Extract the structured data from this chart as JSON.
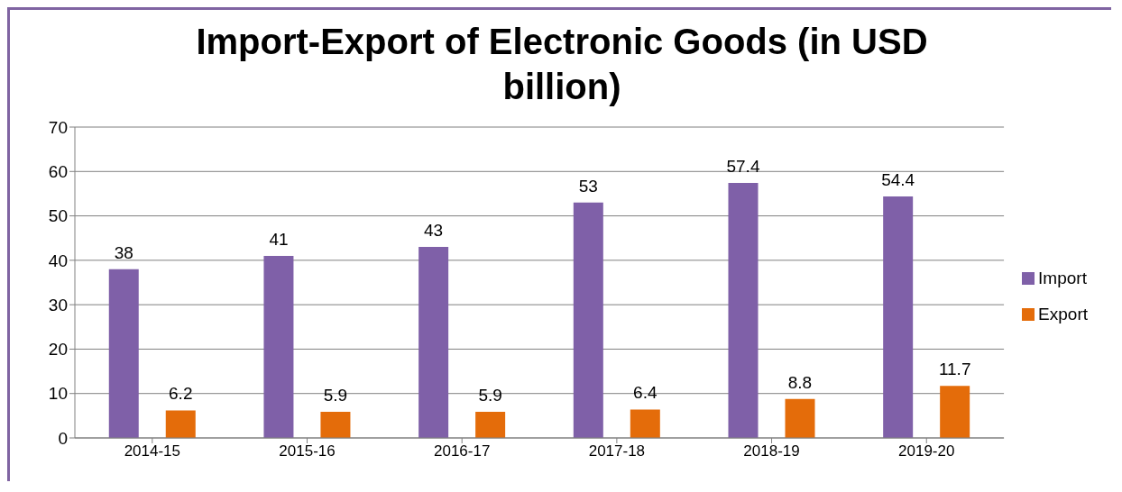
{
  "chart_data": {
    "type": "bar",
    "title": "Import-Export of Electronic Goods (in USD billion)",
    "categories": [
      "2014-15",
      "2015-16",
      "2016-17",
      "2017-18",
      "2018-19",
      "2019-20"
    ],
    "series": [
      {
        "name": "Import",
        "color": "#7f60a8",
        "values": [
          38,
          41,
          43,
          53,
          57.4,
          54.4
        ]
      },
      {
        "name": "Export",
        "color": "#e46c0a",
        "values": [
          6.2,
          5.9,
          5.9,
          6.4,
          8.8,
          11.7
        ]
      }
    ],
    "ylim": [
      0,
      70
    ],
    "yticks": [
      0,
      10,
      20,
      30,
      40,
      50,
      60,
      70
    ],
    "grid": "y",
    "legend": "right",
    "data_labels": true
  }
}
